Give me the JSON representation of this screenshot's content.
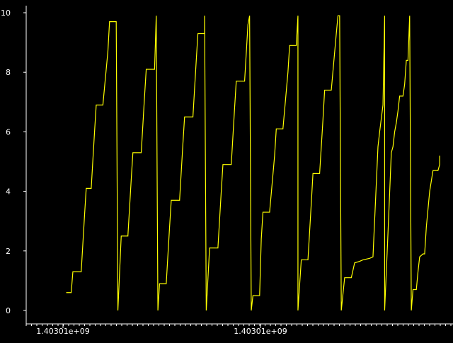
{
  "colors": {
    "background": "#000000",
    "axis": "#ffffff",
    "series": "#ffff00"
  },
  "chart_data": {
    "type": "line",
    "title": "",
    "xlabel": "",
    "ylabel": "",
    "grid": false,
    "ylim": [
      0,
      10
    ],
    "yticks": [
      0,
      2,
      4,
      6,
      8,
      10
    ],
    "ytick_labels": [
      "0",
      "2",
      "4",
      "6",
      "8",
      "10"
    ],
    "xtick_labels": [
      "1.40301e+09",
      "1.40301e+09"
    ],
    "series": [
      {
        "color": "#ffff00",
        "points": [
          [
            0.6,
            0.6
          ],
          [
            0.625,
            0.6
          ],
          [
            0.675,
            0.6
          ],
          [
            0.7,
            1.3
          ],
          [
            0.775,
            1.3
          ],
          [
            0.825,
            1.3
          ],
          [
            0.875,
            3.2
          ],
          [
            0.9,
            4.1
          ],
          [
            0.95,
            4.1
          ],
          [
            0.975,
            4.1
          ],
          [
            1.025,
            6.0
          ],
          [
            1.05,
            6.9
          ],
          [
            1.125,
            6.9
          ],
          [
            1.15,
            6.9
          ],
          [
            1.225,
            8.7
          ],
          [
            1.25,
            9.7
          ],
          [
            1.325,
            9.7
          ],
          [
            1.35,
            9.7
          ],
          [
            1.375,
            0.0
          ],
          [
            1.425,
            2.5
          ],
          [
            1.475,
            2.5
          ],
          [
            1.525,
            2.5
          ],
          [
            1.575,
            4.4
          ],
          [
            1.6,
            5.3
          ],
          [
            1.675,
            5.3
          ],
          [
            1.725,
            5.3
          ],
          [
            1.775,
            7.2
          ],
          [
            1.8,
            8.1
          ],
          [
            1.875,
            8.1
          ],
          [
            1.925,
            8.1
          ],
          [
            1.95,
            9.9
          ],
          [
            1.975,
            0.0
          ],
          [
            2.0,
            0.9
          ],
          [
            2.075,
            0.9
          ],
          [
            2.1,
            0.9
          ],
          [
            2.15,
            2.8
          ],
          [
            2.175,
            3.7
          ],
          [
            2.25,
            3.7
          ],
          [
            2.3,
            3.7
          ],
          [
            2.35,
            5.6
          ],
          [
            2.375,
            6.5
          ],
          [
            2.45,
            6.5
          ],
          [
            2.5,
            6.5
          ],
          [
            2.55,
            8.4
          ],
          [
            2.575,
            9.3
          ],
          [
            2.65,
            9.3
          ],
          [
            2.675,
            9.3
          ],
          [
            2.675,
            9.9
          ],
          [
            2.7,
            0.0
          ],
          [
            2.75,
            2.1
          ],
          [
            2.825,
            2.1
          ],
          [
            2.875,
            2.1
          ],
          [
            2.925,
            4.0
          ],
          [
            2.95,
            4.9
          ],
          [
            3.025,
            4.9
          ],
          [
            3.075,
            4.9
          ],
          [
            3.125,
            6.8
          ],
          [
            3.15,
            7.7
          ],
          [
            3.225,
            7.7
          ],
          [
            3.275,
            7.7
          ],
          [
            3.325,
            9.6
          ],
          [
            3.35,
            9.9
          ],
          [
            3.375,
            0.0
          ],
          [
            3.4,
            0.5
          ],
          [
            3.475,
            0.5
          ],
          [
            3.5,
            0.5
          ],
          [
            3.525,
            2.4
          ],
          [
            3.55,
            3.3
          ],
          [
            3.625,
            3.3
          ],
          [
            3.65,
            3.3
          ],
          [
            3.725,
            5.2
          ],
          [
            3.75,
            6.1
          ],
          [
            3.825,
            6.1
          ],
          [
            3.85,
            6.1
          ],
          [
            3.925,
            8.0
          ],
          [
            3.95,
            8.9
          ],
          [
            4.025,
            8.9
          ],
          [
            4.05,
            8.9
          ],
          [
            4.075,
            9.9
          ],
          [
            4.075,
            0.0
          ],
          [
            4.125,
            1.7
          ],
          [
            4.175,
            1.7
          ],
          [
            4.225,
            1.7
          ],
          [
            4.275,
            3.6
          ],
          [
            4.3,
            4.6
          ],
          [
            4.375,
            4.6
          ],
          [
            4.4,
            4.6
          ],
          [
            4.45,
            6.4
          ],
          [
            4.475,
            7.4
          ],
          [
            4.55,
            7.4
          ],
          [
            4.575,
            7.4
          ],
          [
            4.65,
            9.3
          ],
          [
            4.675,
            9.9
          ],
          [
            4.7,
            9.9
          ],
          [
            4.725,
            0.0
          ],
          [
            4.775,
            1.1
          ],
          [
            4.875,
            1.1
          ],
          [
            4.925,
            1.6
          ],
          [
            5.0,
            1.65
          ],
          [
            5.05,
            1.7
          ],
          [
            5.15,
            1.75
          ],
          [
            5.2,
            1.8
          ],
          [
            5.275,
            5.5
          ],
          [
            5.3,
            6.0
          ],
          [
            5.35,
            6.9
          ],
          [
            5.375,
            9.9
          ],
          [
            5.375,
            0.0
          ],
          [
            5.425,
            2.6
          ],
          [
            5.475,
            5.3
          ],
          [
            5.5,
            5.5
          ],
          [
            5.525,
            6.0
          ],
          [
            5.55,
            6.3
          ],
          [
            5.575,
            6.7
          ],
          [
            5.6,
            7.2
          ],
          [
            5.65,
            7.2
          ],
          [
            5.675,
            7.6
          ],
          [
            5.7,
            8.4
          ],
          [
            5.725,
            8.4
          ],
          [
            5.75,
            9.9
          ],
          [
            5.775,
            0.0
          ],
          [
            5.8,
            0.7
          ],
          [
            5.85,
            0.7
          ],
          [
            5.875,
            1.3
          ],
          [
            5.9,
            1.8
          ],
          [
            5.95,
            1.9
          ],
          [
            5.975,
            1.9
          ],
          [
            6.0,
            2.8
          ],
          [
            6.05,
            4.0
          ],
          [
            6.1,
            4.7
          ],
          [
            6.175,
            4.7
          ],
          [
            6.2,
            4.9
          ],
          [
            6.2,
            5.2
          ]
        ]
      }
    ]
  }
}
